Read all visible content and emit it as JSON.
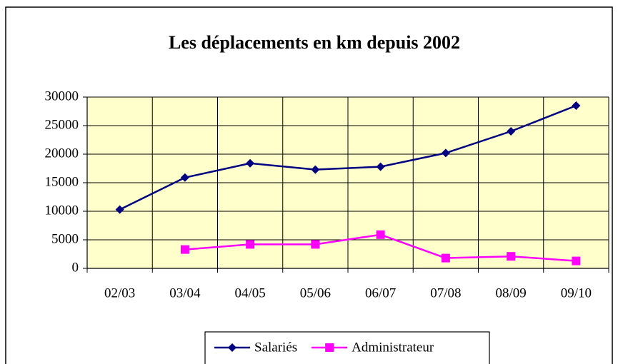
{
  "chart_data": {
    "type": "line",
    "title": "Les déplacements en km depuis 2002",
    "categories": [
      "02/03",
      "03/04",
      "04/05",
      "05/06",
      "06/07",
      "07/08",
      "08/09",
      "09/10"
    ],
    "series": [
      {
        "name": "Salariés",
        "color": "#000080",
        "marker": "diamond",
        "values": [
          10300,
          15900,
          18400,
          17300,
          17800,
          20200,
          24000,
          28500
        ]
      },
      {
        "name": "Administrateur",
        "color": "#ff00ff",
        "marker": "square",
        "values": [
          null,
          3300,
          4200,
          4200,
          5900,
          1800,
          2100,
          1300
        ]
      }
    ],
    "ylim": [
      0,
      30000
    ],
    "yticks": [
      0,
      5000,
      10000,
      15000,
      20000,
      25000,
      30000
    ],
    "grid": true,
    "legend": "bottom"
  }
}
